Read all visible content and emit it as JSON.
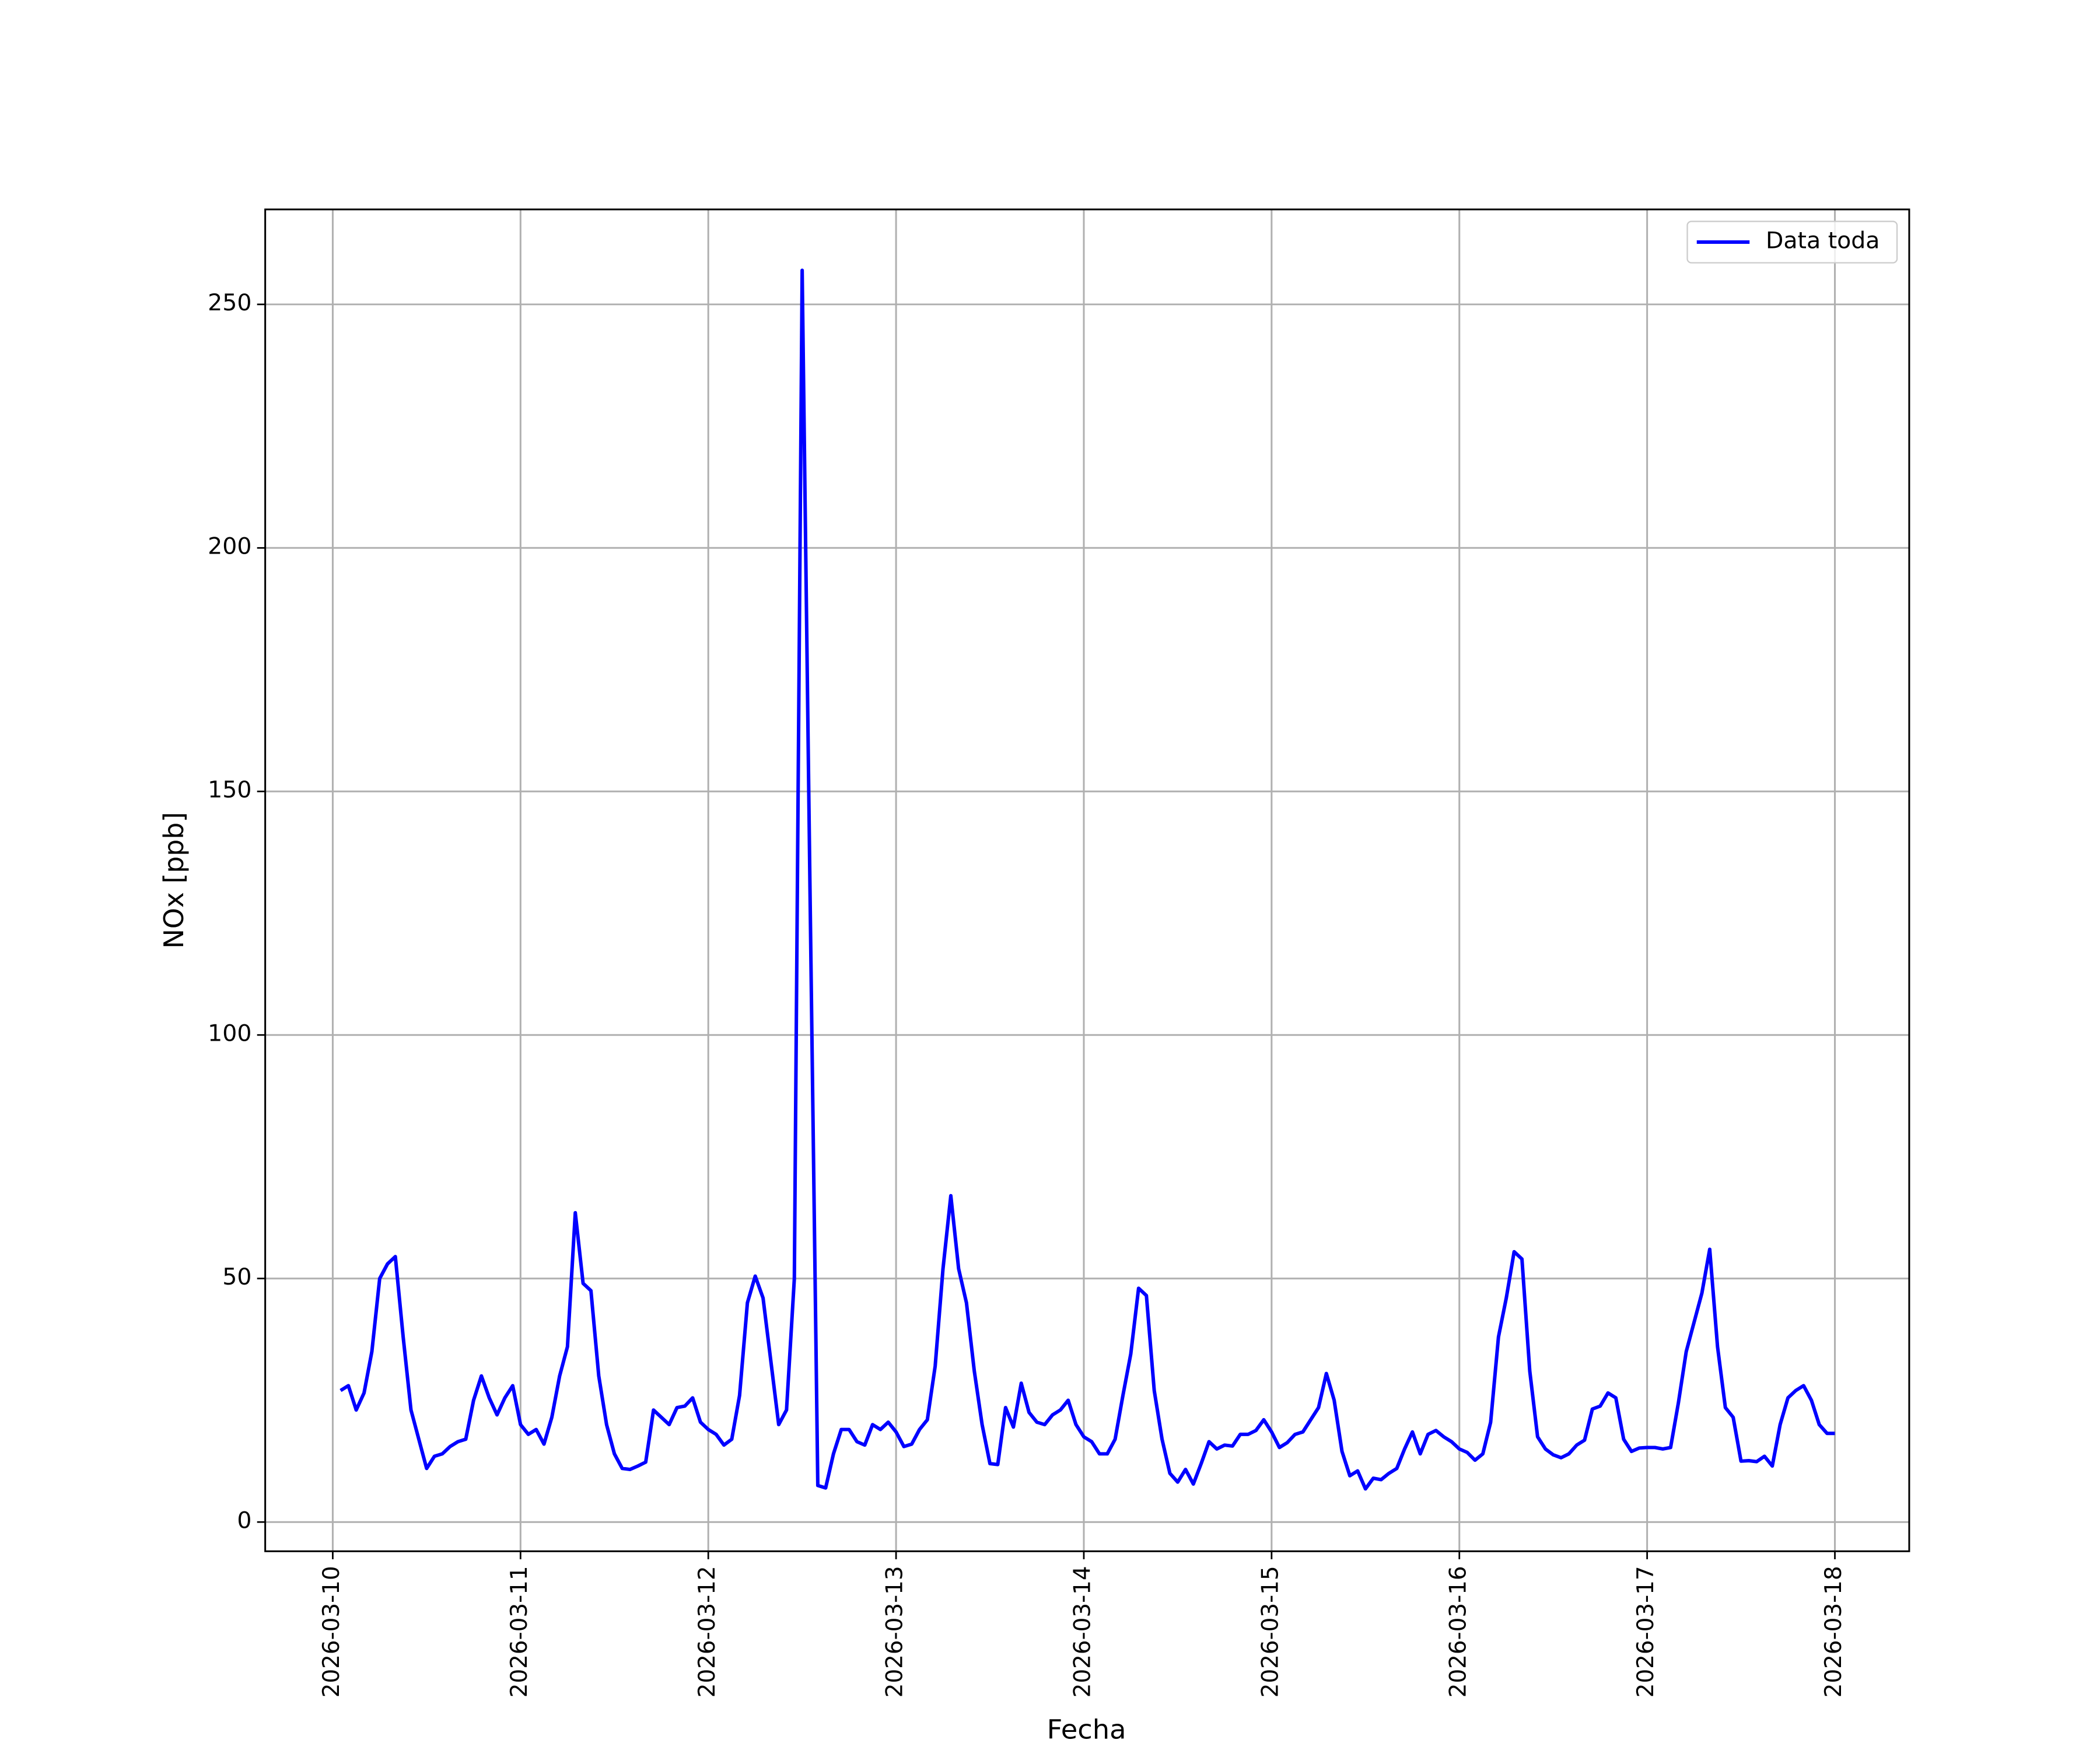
{
  "chart_data": {
    "type": "line",
    "xlabel": "Fecha",
    "ylabel": "NOx [ppb]",
    "x": [
      "2026-03-10 01:00",
      "2026-03-10 02:00",
      "2026-03-10 03:00",
      "2026-03-10 04:00",
      "2026-03-10 05:00",
      "2026-03-10 06:00",
      "2026-03-10 07:00",
      "2026-03-10 08:00",
      "2026-03-10 09:00",
      "2026-03-10 10:00",
      "2026-03-10 11:00",
      "2026-03-10 12:00",
      "2026-03-10 13:00",
      "2026-03-10 14:00",
      "2026-03-10 15:00",
      "2026-03-10 16:00",
      "2026-03-10 17:00",
      "2026-03-10 18:00",
      "2026-03-10 19:00",
      "2026-03-10 20:00",
      "2026-03-10 21:00",
      "2026-03-10 22:00",
      "2026-03-10 23:00",
      "2026-03-11 00:00",
      "2026-03-11 01:00",
      "2026-03-11 02:00",
      "2026-03-11 03:00",
      "2026-03-11 04:00",
      "2026-03-11 05:00",
      "2026-03-11 06:00",
      "2026-03-11 07:00",
      "2026-03-11 08:00",
      "2026-03-11 09:00",
      "2026-03-11 10:00",
      "2026-03-11 11:00",
      "2026-03-11 12:00",
      "2026-03-11 13:00",
      "2026-03-11 14:00",
      "2026-03-11 15:00",
      "2026-03-11 16:00",
      "2026-03-11 17:00",
      "2026-03-11 18:00",
      "2026-03-11 19:00",
      "2026-03-11 20:00",
      "2026-03-11 21:00",
      "2026-03-11 22:00",
      "2026-03-11 23:00",
      "2026-03-12 00:00",
      "2026-03-12 01:00",
      "2026-03-12 02:00",
      "2026-03-12 03:00",
      "2026-03-12 04:00",
      "2026-03-12 05:00",
      "2026-03-12 06:00",
      "2026-03-12 07:00",
      "2026-03-12 08:00",
      "2026-03-12 09:00",
      "2026-03-12 10:00",
      "2026-03-12 11:00",
      "2026-03-12 12:00",
      "2026-03-12 13:00",
      "2026-03-12 14:00",
      "2026-03-12 15:00",
      "2026-03-12 16:00",
      "2026-03-12 17:00",
      "2026-03-12 18:00",
      "2026-03-12 19:00",
      "2026-03-12 20:00",
      "2026-03-12 21:00",
      "2026-03-12 22:00",
      "2026-03-12 23:00",
      "2026-03-13 00:00",
      "2026-03-13 01:00",
      "2026-03-13 02:00",
      "2026-03-13 03:00",
      "2026-03-13 04:00",
      "2026-03-13 05:00",
      "2026-03-13 06:00",
      "2026-03-13 07:00",
      "2026-03-13 08:00",
      "2026-03-13 09:00",
      "2026-03-13 10:00",
      "2026-03-13 11:00",
      "2026-03-13 12:00",
      "2026-03-13 13:00",
      "2026-03-13 14:00",
      "2026-03-13 15:00",
      "2026-03-13 16:00",
      "2026-03-13 17:00",
      "2026-03-13 18:00",
      "2026-03-13 19:00",
      "2026-03-13 20:00",
      "2026-03-13 21:00",
      "2026-03-13 22:00",
      "2026-03-13 23:00",
      "2026-03-14 00:00",
      "2026-03-14 01:00",
      "2026-03-14 02:00",
      "2026-03-14 03:00",
      "2026-03-14 04:00",
      "2026-03-14 05:00",
      "2026-03-14 06:00",
      "2026-03-14 07:00",
      "2026-03-14 08:00",
      "2026-03-14 09:00",
      "2026-03-14 10:00",
      "2026-03-14 11:00",
      "2026-03-14 12:00",
      "2026-03-14 13:00",
      "2026-03-14 14:00",
      "2026-03-14 15:00",
      "2026-03-14 16:00",
      "2026-03-14 17:00",
      "2026-03-14 18:00",
      "2026-03-14 19:00",
      "2026-03-14 20:00",
      "2026-03-14 21:00",
      "2026-03-14 22:00",
      "2026-03-14 23:00",
      "2026-03-15 00:00",
      "2026-03-15 01:00",
      "2026-03-15 02:00",
      "2026-03-15 03:00",
      "2026-03-15 04:00",
      "2026-03-15 05:00",
      "2026-03-15 06:00",
      "2026-03-15 07:00",
      "2026-03-15 08:00",
      "2026-03-15 09:00",
      "2026-03-15 10:00",
      "2026-03-15 11:00",
      "2026-03-15 12:00",
      "2026-03-15 13:00",
      "2026-03-15 14:00",
      "2026-03-15 15:00",
      "2026-03-15 16:00",
      "2026-03-15 17:00",
      "2026-03-15 18:00",
      "2026-03-15 19:00",
      "2026-03-15 20:00",
      "2026-03-15 21:00",
      "2026-03-15 22:00",
      "2026-03-15 23:00",
      "2026-03-16 00:00",
      "2026-03-16 01:00",
      "2026-03-16 02:00",
      "2026-03-16 03:00",
      "2026-03-16 04:00",
      "2026-03-16 05:00",
      "2026-03-16 06:00",
      "2026-03-16 07:00",
      "2026-03-16 08:00",
      "2026-03-16 09:00",
      "2026-03-16 10:00",
      "2026-03-16 11:00",
      "2026-03-16 12:00",
      "2026-03-16 13:00",
      "2026-03-16 14:00",
      "2026-03-16 15:00",
      "2026-03-16 16:00",
      "2026-03-16 17:00",
      "2026-03-16 18:00",
      "2026-03-16 19:00",
      "2026-03-16 20:00",
      "2026-03-16 21:00",
      "2026-03-16 22:00",
      "2026-03-16 23:00",
      "2026-03-17 00:00",
      "2026-03-17 01:00",
      "2026-03-17 02:00",
      "2026-03-17 03:00",
      "2026-03-17 04:00",
      "2026-03-17 05:00",
      "2026-03-17 06:00",
      "2026-03-17 07:00",
      "2026-03-17 08:00",
      "2026-03-17 09:00",
      "2026-03-17 10:00",
      "2026-03-17 11:00",
      "2026-03-17 12:00",
      "2026-03-17 13:00",
      "2026-03-17 14:00",
      "2026-03-17 15:00",
      "2026-03-17 16:00",
      "2026-03-17 17:00",
      "2026-03-17 18:00",
      "2026-03-17 19:00",
      "2026-03-17 20:00",
      "2026-03-17 21:00",
      "2026-03-17 22:00",
      "2026-03-17 23:00",
      "2026-03-18 00:00"
    ],
    "series": [
      {
        "name": "Data toda",
        "color": "#0000ff",
        "values": [
          27,
          28,
          23,
          26.5,
          35,
          50,
          53,
          54.5,
          38,
          23,
          17,
          11,
          13.5,
          14,
          15.5,
          16.5,
          17,
          25,
          30,
          25.5,
          22,
          25.5,
          28,
          20,
          18,
          19,
          16,
          21.5,
          30,
          36,
          63.5,
          49,
          47.5,
          30,
          20,
          14,
          11,
          10.8,
          11.5,
          12.3,
          23,
          21.5,
          20,
          23.5,
          23.8,
          25.5,
          20.5,
          19,
          18,
          15.8,
          17,
          26,
          45,
          50.5,
          46,
          33,
          20,
          23,
          50,
          257,
          130,
          7.5,
          7,
          14,
          19,
          19,
          16.5,
          15.8,
          20,
          19,
          20.5,
          18.5,
          15.5,
          16,
          19,
          21,
          32,
          52,
          67,
          52,
          45,
          31,
          20,
          12,
          11.8,
          23.5,
          19.5,
          28.5,
          22.5,
          20.5,
          20,
          22,
          23,
          25,
          20,
          17.5,
          16.5,
          14,
          14,
          17,
          26,
          34.5,
          48,
          46.5,
          27,
          17,
          10,
          8.2,
          10.8,
          7.8,
          12,
          16.5,
          15,
          15.8,
          15.6,
          18,
          18,
          18.8,
          21,
          18.5,
          15.3,
          16.3,
          18,
          18.5,
          21,
          23.5,
          30.5,
          25,
          14.5,
          9.5,
          10.5,
          6.8,
          9,
          8.7,
          10,
          11,
          15,
          18.5,
          14,
          18,
          18.8,
          17.5,
          16.5,
          15,
          14.3,
          12.7,
          14,
          20.5,
          38,
          46,
          55.5,
          54,
          31,
          17.5,
          15,
          13.8,
          13.2,
          14,
          15.8,
          16.8,
          23.2,
          23.8,
          26.5,
          25.5,
          17,
          14.5,
          15.2,
          15.3,
          15.3,
          15,
          15.3,
          24.5,
          35,
          41,
          47,
          56,
          36,
          23.5,
          21.5,
          12.5,
          12.6,
          12.4,
          13.5,
          11.5,
          20,
          25.5,
          27,
          28,
          25,
          20,
          18.2,
          18.2
        ]
      }
    ],
    "xlim": [
      "2026-03-09 15:22",
      "2026-03-18 09:30"
    ],
    "xticks": [
      "2026-03-10",
      "2026-03-11",
      "2026-03-12",
      "2026-03-13",
      "2026-03-14",
      "2026-03-15",
      "2026-03-16",
      "2026-03-17",
      "2026-03-18"
    ],
    "ylim": [
      -6,
      269.5
    ],
    "yticks": [
      0,
      50,
      100,
      150,
      200,
      250
    ],
    "grid": true,
    "legend": "upper right"
  }
}
